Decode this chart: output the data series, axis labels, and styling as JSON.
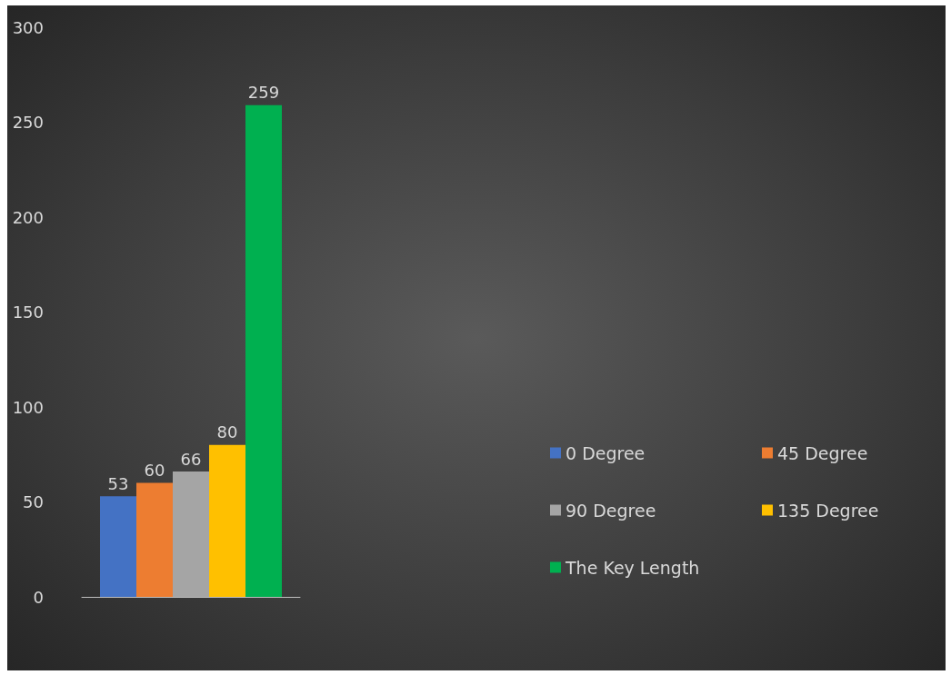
{
  "chart_data": {
    "type": "bar",
    "categories": [
      null
    ],
    "series": [
      {
        "name": "0 Degree",
        "color": "#4472c4",
        "values": [
          53
        ]
      },
      {
        "name": "45 Degree",
        "color": "#ed7d31",
        "values": [
          60
        ]
      },
      {
        "name": "90 Degree",
        "color": "#a5a5a5",
        "values": [
          66
        ]
      },
      {
        "name": "135 Degree",
        "color": "#ffc000",
        "values": [
          80
        ]
      },
      {
        "name": "The Key Length",
        "color": "#00b050",
        "values": [
          259
        ]
      }
    ],
    "ylim": [
      0,
      300
    ],
    "yticks": [
      0,
      50,
      100,
      150,
      200,
      250,
      300
    ],
    "data_labels": true,
    "grid": false,
    "legend": "right"
  }
}
